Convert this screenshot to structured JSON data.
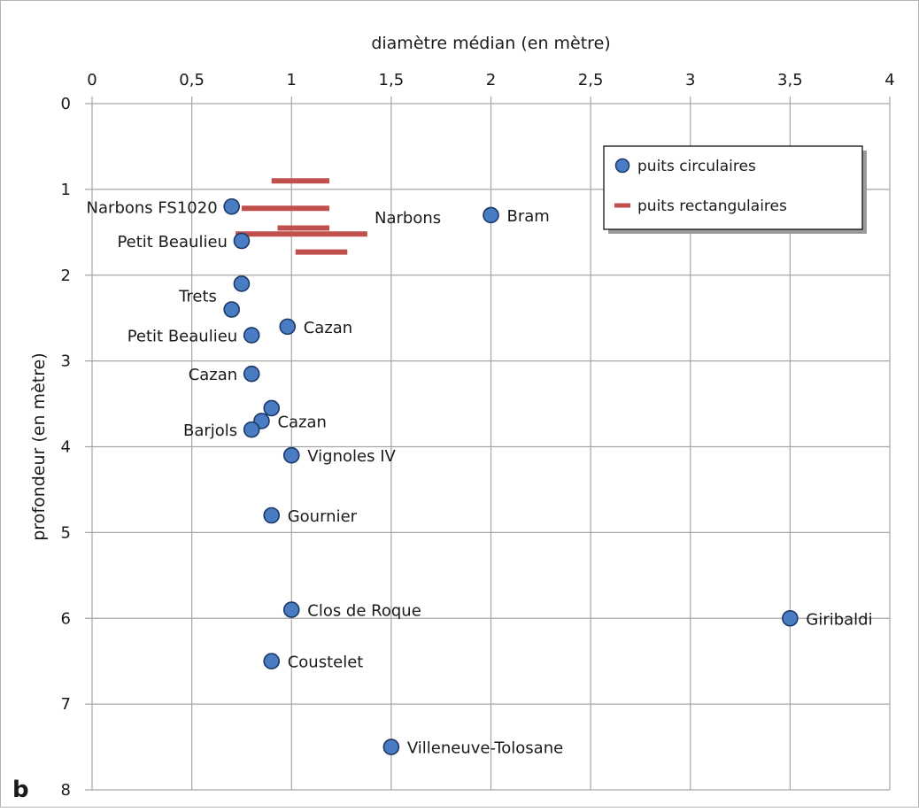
{
  "chart_data": {
    "type": "scatter",
    "panel_letter": "b",
    "xlabel": "diamètre médian (en mètre)",
    "ylabel": "profondeur (en mètre)",
    "xlim": [
      0,
      4
    ],
    "ylim": [
      0,
      8
    ],
    "x_axis_position": "top",
    "y_inverted": true,
    "grid": true,
    "x_ticks": [
      "0",
      "0,5",
      "1",
      "1,5",
      "2",
      "2,5",
      "3",
      "3,5",
      "4"
    ],
    "y_ticks": [
      "0",
      "1",
      "2",
      "3",
      "4",
      "5",
      "6",
      "7",
      "8"
    ],
    "legend": {
      "placement": "top-right",
      "entries": [
        "puits circulaires",
        "puits rectangulaires"
      ]
    },
    "colors": {
      "circle_fill": "#4a7cc4",
      "circle_stroke": "#1c3866",
      "rect_bar": "#c0504d",
      "grid": "#a6a6a6"
    },
    "series": [
      {
        "name": "puits circulaires",
        "marker": "circle",
        "points": [
          {
            "x": 0.7,
            "y": 1.2,
            "label": "Narbons FS1020",
            "label_side": "left"
          },
          {
            "x": 2.0,
            "y": 1.3,
            "label": "Bram",
            "label_side": "right"
          },
          {
            "x": 0.75,
            "y": 1.6,
            "label": "Petit Beaulieu",
            "label_side": "left"
          },
          {
            "x": 0.75,
            "y": 2.1,
            "label": "Trets",
            "label_side": "left-up"
          },
          {
            "x": 0.7,
            "y": 2.4,
            "label": "",
            "label_side": "none"
          },
          {
            "x": 0.98,
            "y": 2.6,
            "label": "Cazan",
            "label_side": "right"
          },
          {
            "x": 0.8,
            "y": 2.7,
            "label": "Petit Beaulieu",
            "label_side": "left"
          },
          {
            "x": 0.8,
            "y": 3.15,
            "label": "Cazan",
            "label_side": "left"
          },
          {
            "x": 0.9,
            "y": 3.55,
            "label": "",
            "label_side": "none"
          },
          {
            "x": 0.85,
            "y": 3.7,
            "label": "Cazan",
            "label_side": "right"
          },
          {
            "x": 0.8,
            "y": 3.8,
            "label": "Barjols",
            "label_side": "left"
          },
          {
            "x": 1.0,
            "y": 4.1,
            "label": "Vignoles IV",
            "label_side": "right"
          },
          {
            "x": 0.9,
            "y": 4.8,
            "label": "Gournier",
            "label_side": "right"
          },
          {
            "x": 1.0,
            "y": 5.9,
            "label": "Clos de Roque",
            "label_side": "right"
          },
          {
            "x": 3.5,
            "y": 6.0,
            "label": "Giribaldi",
            "label_side": "right"
          },
          {
            "x": 0.9,
            "y": 6.5,
            "label": "Coustelet",
            "label_side": "right"
          },
          {
            "x": 1.5,
            "y": 7.5,
            "label": "Villeneuve-Tolosane",
            "label_side": "right"
          }
        ]
      },
      {
        "name": "puits rectangulaires",
        "marker": "bar",
        "group_label": "Narbons",
        "bars": [
          {
            "x0": 0.9,
            "x1": 1.19,
            "y": 0.9
          },
          {
            "x0": 0.75,
            "x1": 1.19,
            "y": 1.22
          },
          {
            "x0": 0.93,
            "x1": 1.19,
            "y": 1.45
          },
          {
            "x0": 0.72,
            "x1": 1.38,
            "y": 1.52
          },
          {
            "x0": 1.02,
            "x1": 1.28,
            "y": 1.73
          }
        ]
      }
    ]
  }
}
